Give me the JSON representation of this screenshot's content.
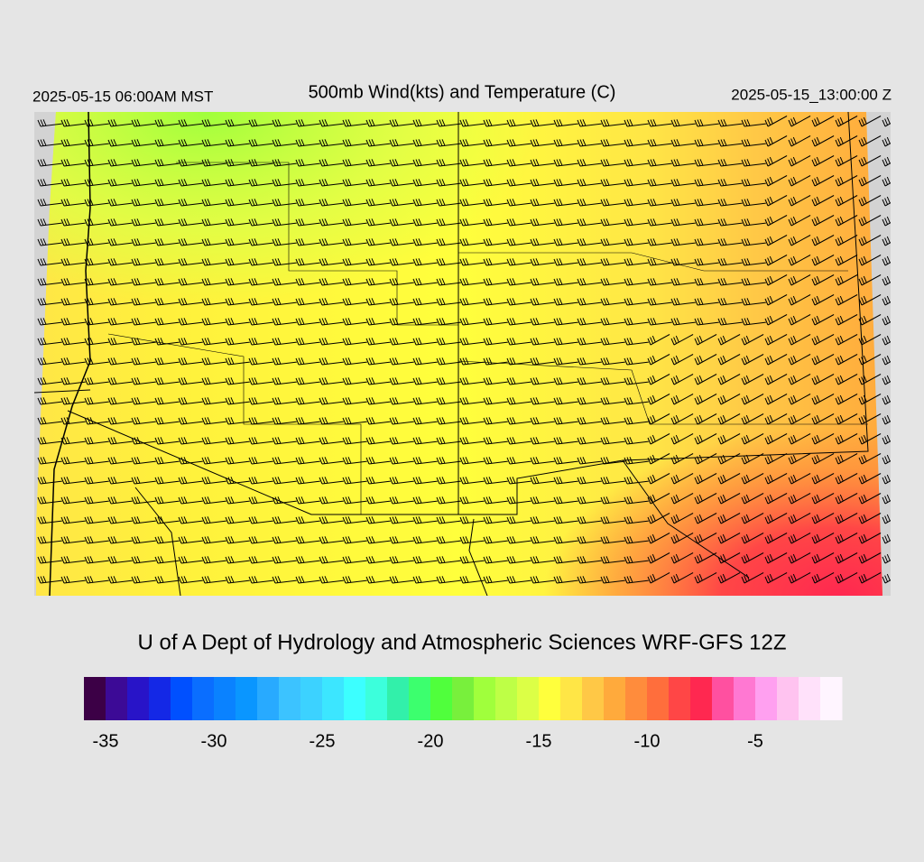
{
  "header": {
    "left": "2025-05-15 06:00AM MST",
    "title": "500mb Wind(kts) and Temperature (C)",
    "right": "2025-05-15_13:00:00 Z"
  },
  "footer": {
    "credit": "U of A Dept of Hydrology and Atmospheric Sciences WRF-GFS 12Z"
  },
  "colorbar": {
    "range": [
      -36,
      -1
    ],
    "ticks": [
      -35,
      -30,
      -25,
      -20,
      -15,
      -10,
      -5
    ],
    "colors": [
      "#3c0046",
      "#3c0a96",
      "#2814c8",
      "#1428e6",
      "#0050ff",
      "#0a6eff",
      "#0a82ff",
      "#0a96ff",
      "#28aaff",
      "#3cc3ff",
      "#3cd2ff",
      "#3ce6ff",
      "#3cffff",
      "#3cffdc",
      "#32f0aa",
      "#3cff6e",
      "#50ff3c",
      "#78f03c",
      "#a0ff3c",
      "#beff46",
      "#dcff46",
      "#ffff3c",
      "#ffe646",
      "#ffc846",
      "#ffaa3c",
      "#ff8c3c",
      "#ff6e3c",
      "#ff4646",
      "#ff2850",
      "#ff50a0",
      "#ff78d2",
      "#ffa0f0",
      "#ffc3f0",
      "#ffe1fa",
      "#fff5ff"
    ]
  }
}
